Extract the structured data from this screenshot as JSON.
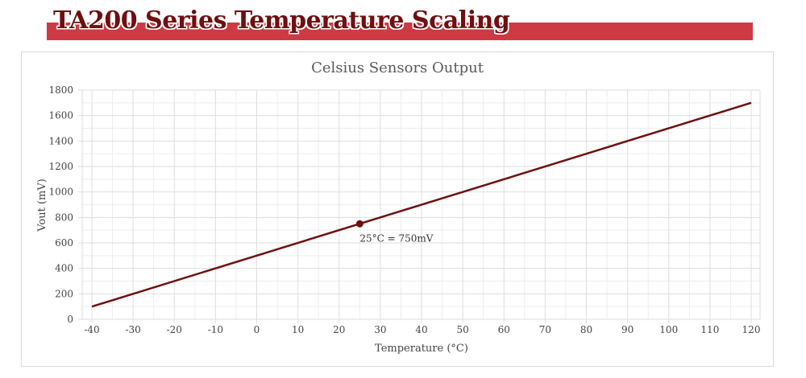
{
  "header": {
    "title": "TA200 Series Temperature Scaling",
    "banner_color": "#cd3a43",
    "title_color": "#6e0f10"
  },
  "chart_data": {
    "type": "line",
    "title": "Celsius Sensors Output",
    "xlabel": "Temperature (°C)",
    "ylabel": "Vout (mV)",
    "xlim": [
      -40,
      120
    ],
    "ylim": [
      0,
      1800
    ],
    "xticks": [
      -40,
      -30,
      -20,
      -10,
      0,
      10,
      20,
      30,
      40,
      50,
      60,
      70,
      80,
      90,
      100,
      110,
      120
    ],
    "yticks": [
      0,
      200,
      400,
      600,
      800,
      1000,
      1200,
      1400,
      1600,
      1800
    ],
    "grid": true,
    "series": [
      {
        "color": "#6e1010",
        "x": [
          -40,
          120
        ],
        "y": [
          100,
          1700
        ]
      }
    ],
    "annotations": [
      {
        "x": 25,
        "y": 750,
        "text": "25°C = 750mV",
        "color": "#6e1010"
      }
    ]
  }
}
